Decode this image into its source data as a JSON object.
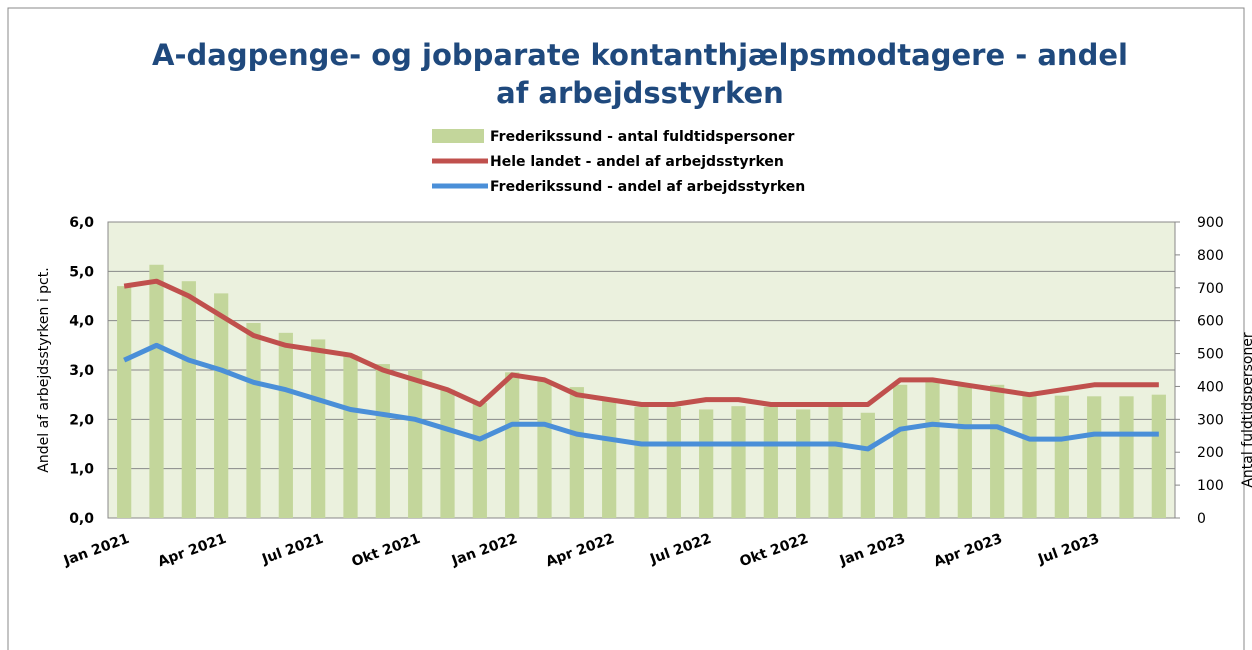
{
  "chart_data": {
    "type": "bar_line",
    "title": "A-dagpenge- og jobparate kontanthjælpsmodtagere - andel af arbejdsstyrken",
    "y_label": "Andel af arbejdsstyrken i pct.",
    "y2_label": "Antal fuldtidspersoner",
    "categories": [
      "Jan 2021",
      null,
      null,
      "Apr 2021",
      null,
      null,
      "Jul 2021",
      null,
      null,
      "Okt 2021",
      null,
      null,
      "Jan 2022",
      null,
      null,
      "Apr 2022",
      null,
      null,
      "Jul 2022",
      null,
      null,
      "Okt 2022",
      null,
      null,
      "Jan 2023",
      null,
      null,
      "Apr 2023",
      null,
      null,
      "Jul 2023",
      null,
      null
    ],
    "ylim": [
      0,
      6
    ],
    "yticks": [
      {
        "value": 0,
        "label": "0,0"
      },
      {
        "value": 1,
        "label": "1,0"
      },
      {
        "value": 2,
        "label": "2,0"
      },
      {
        "value": 3,
        "label": "3,0"
      },
      {
        "value": 4,
        "label": "4,0"
      },
      {
        "value": 5,
        "label": "5,0"
      },
      {
        "value": 6,
        "label": "6,0"
      }
    ],
    "y2lim": [
      0,
      900
    ],
    "y2ticks": [
      0,
      100,
      200,
      300,
      400,
      500,
      600,
      700,
      800,
      900
    ],
    "grid": true,
    "series": [
      {
        "name": "Frederikssund - antal fuldtidspersoner",
        "type": "bar",
        "axis": "y2",
        "color": "#c3d69b",
        "values": [
          705,
          770,
          720,
          683,
          593,
          563,
          543,
          495,
          468,
          450,
          390,
          350,
          443,
          417,
          398,
          360,
          338,
          338,
          330,
          340,
          338,
          330,
          340,
          320,
          405,
          417,
          405,
          405,
          375,
          372,
          370,
          370,
          375
        ]
      },
      {
        "name": "Hele landet - andel af arbejdsstyrken",
        "type": "line",
        "color": "#c0504d",
        "values": [
          4.7,
          4.8,
          4.5,
          4.1,
          3.7,
          3.5,
          3.4,
          3.3,
          3.0,
          2.8,
          2.6,
          2.3,
          2.9,
          2.8,
          2.5,
          2.4,
          2.3,
          2.3,
          2.4,
          2.4,
          2.3,
          2.3,
          2.3,
          2.3,
          2.8,
          2.8,
          2.7,
          2.6,
          2.5,
          2.6,
          2.7,
          2.7,
          2.7
        ]
      },
      {
        "name": "Frederikssund - andel af arbejdsstyrken",
        "type": "line",
        "color": "#4a8fd8",
        "values": [
          3.2,
          3.5,
          3.2,
          3.0,
          2.75,
          2.6,
          2.4,
          2.2,
          2.1,
          2.0,
          1.8,
          1.6,
          1.9,
          1.9,
          1.7,
          1.6,
          1.5,
          1.5,
          1.5,
          1.5,
          1.5,
          1.5,
          1.5,
          1.4,
          1.8,
          1.9,
          1.85,
          1.85,
          1.6,
          1.6,
          1.7,
          1.7,
          1.7
        ]
      }
    ]
  }
}
